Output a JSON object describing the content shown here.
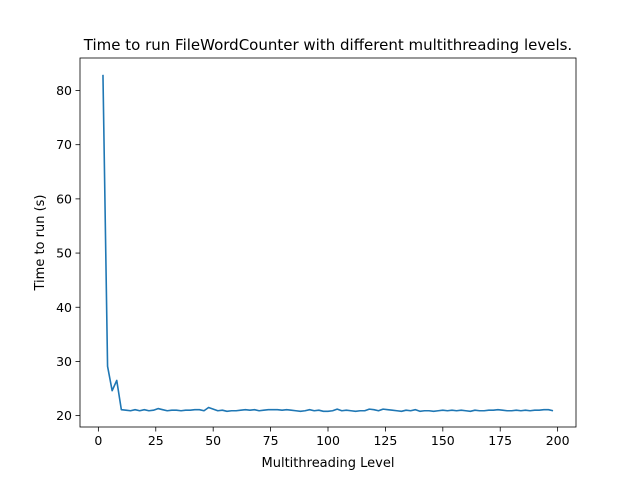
{
  "chart_data": {
    "type": "line",
    "title": "Time to run FileWordCounter with different multithreading levels.",
    "xlabel": "Multithreading Level",
    "ylabel": "Time to run (s)",
    "xlim": [
      -8,
      208
    ],
    "ylim": [
      17.9,
      86
    ],
    "xticks": [
      0,
      25,
      50,
      75,
      100,
      125,
      150,
      175,
      200
    ],
    "yticks": [
      20,
      30,
      40,
      50,
      60,
      70,
      80
    ],
    "grid": false,
    "line_color": "#1f77b4",
    "series": [
      {
        "x": [
          2,
          4,
          6,
          8,
          10,
          12,
          14,
          16,
          18,
          20,
          22,
          24,
          26,
          28,
          30,
          32,
          34,
          36,
          38,
          40,
          42,
          44,
          46,
          48,
          50,
          52,
          54,
          56,
          58,
          60,
          62,
          64,
          66,
          68,
          70,
          72,
          74,
          76,
          78,
          80,
          82,
          84,
          86,
          88,
          90,
          92,
          94,
          96,
          98,
          100,
          102,
          104,
          106,
          108,
          110,
          112,
          114,
          116,
          118,
          120,
          122,
          124,
          126,
          128,
          130,
          132,
          134,
          136,
          138,
          140,
          142,
          144,
          146,
          148,
          150,
          152,
          154,
          156,
          158,
          160,
          162,
          164,
          166,
          168,
          170,
          172,
          174,
          176,
          178,
          180,
          182,
          184,
          186,
          188,
          190,
          192,
          194,
          196,
          198
        ],
        "values": [
          82.9,
          29.1,
          24.6,
          26.5,
          21.1,
          21.0,
          20.9,
          21.1,
          20.9,
          21.1,
          20.9,
          21.0,
          21.3,
          21.1,
          20.9,
          21.0,
          21.0,
          20.9,
          21.0,
          21.0,
          21.1,
          21.1,
          20.9,
          21.5,
          21.2,
          20.9,
          21.0,
          20.8,
          20.9,
          20.9,
          21.0,
          21.1,
          21.0,
          21.1,
          20.9,
          21.0,
          21.1,
          21.1,
          21.1,
          21.0,
          21.1,
          21.0,
          20.9,
          20.8,
          20.9,
          21.1,
          20.9,
          21.0,
          20.8,
          20.8,
          20.9,
          21.2,
          20.9,
          21.0,
          20.9,
          20.8,
          20.9,
          20.9,
          21.2,
          21.1,
          20.9,
          21.2,
          21.1,
          21.0,
          20.9,
          20.8,
          21.0,
          20.9,
          21.1,
          20.8,
          20.9,
          20.9,
          20.8,
          20.9,
          21.0,
          20.9,
          21.0,
          20.9,
          21.0,
          20.9,
          20.8,
          21.0,
          20.9,
          20.9,
          21.0,
          21.0,
          21.1,
          21.0,
          20.9,
          20.9,
          21.0,
          20.9,
          21.0,
          20.9,
          21.0,
          21.0,
          21.1,
          21.1,
          20.9
        ]
      }
    ]
  }
}
